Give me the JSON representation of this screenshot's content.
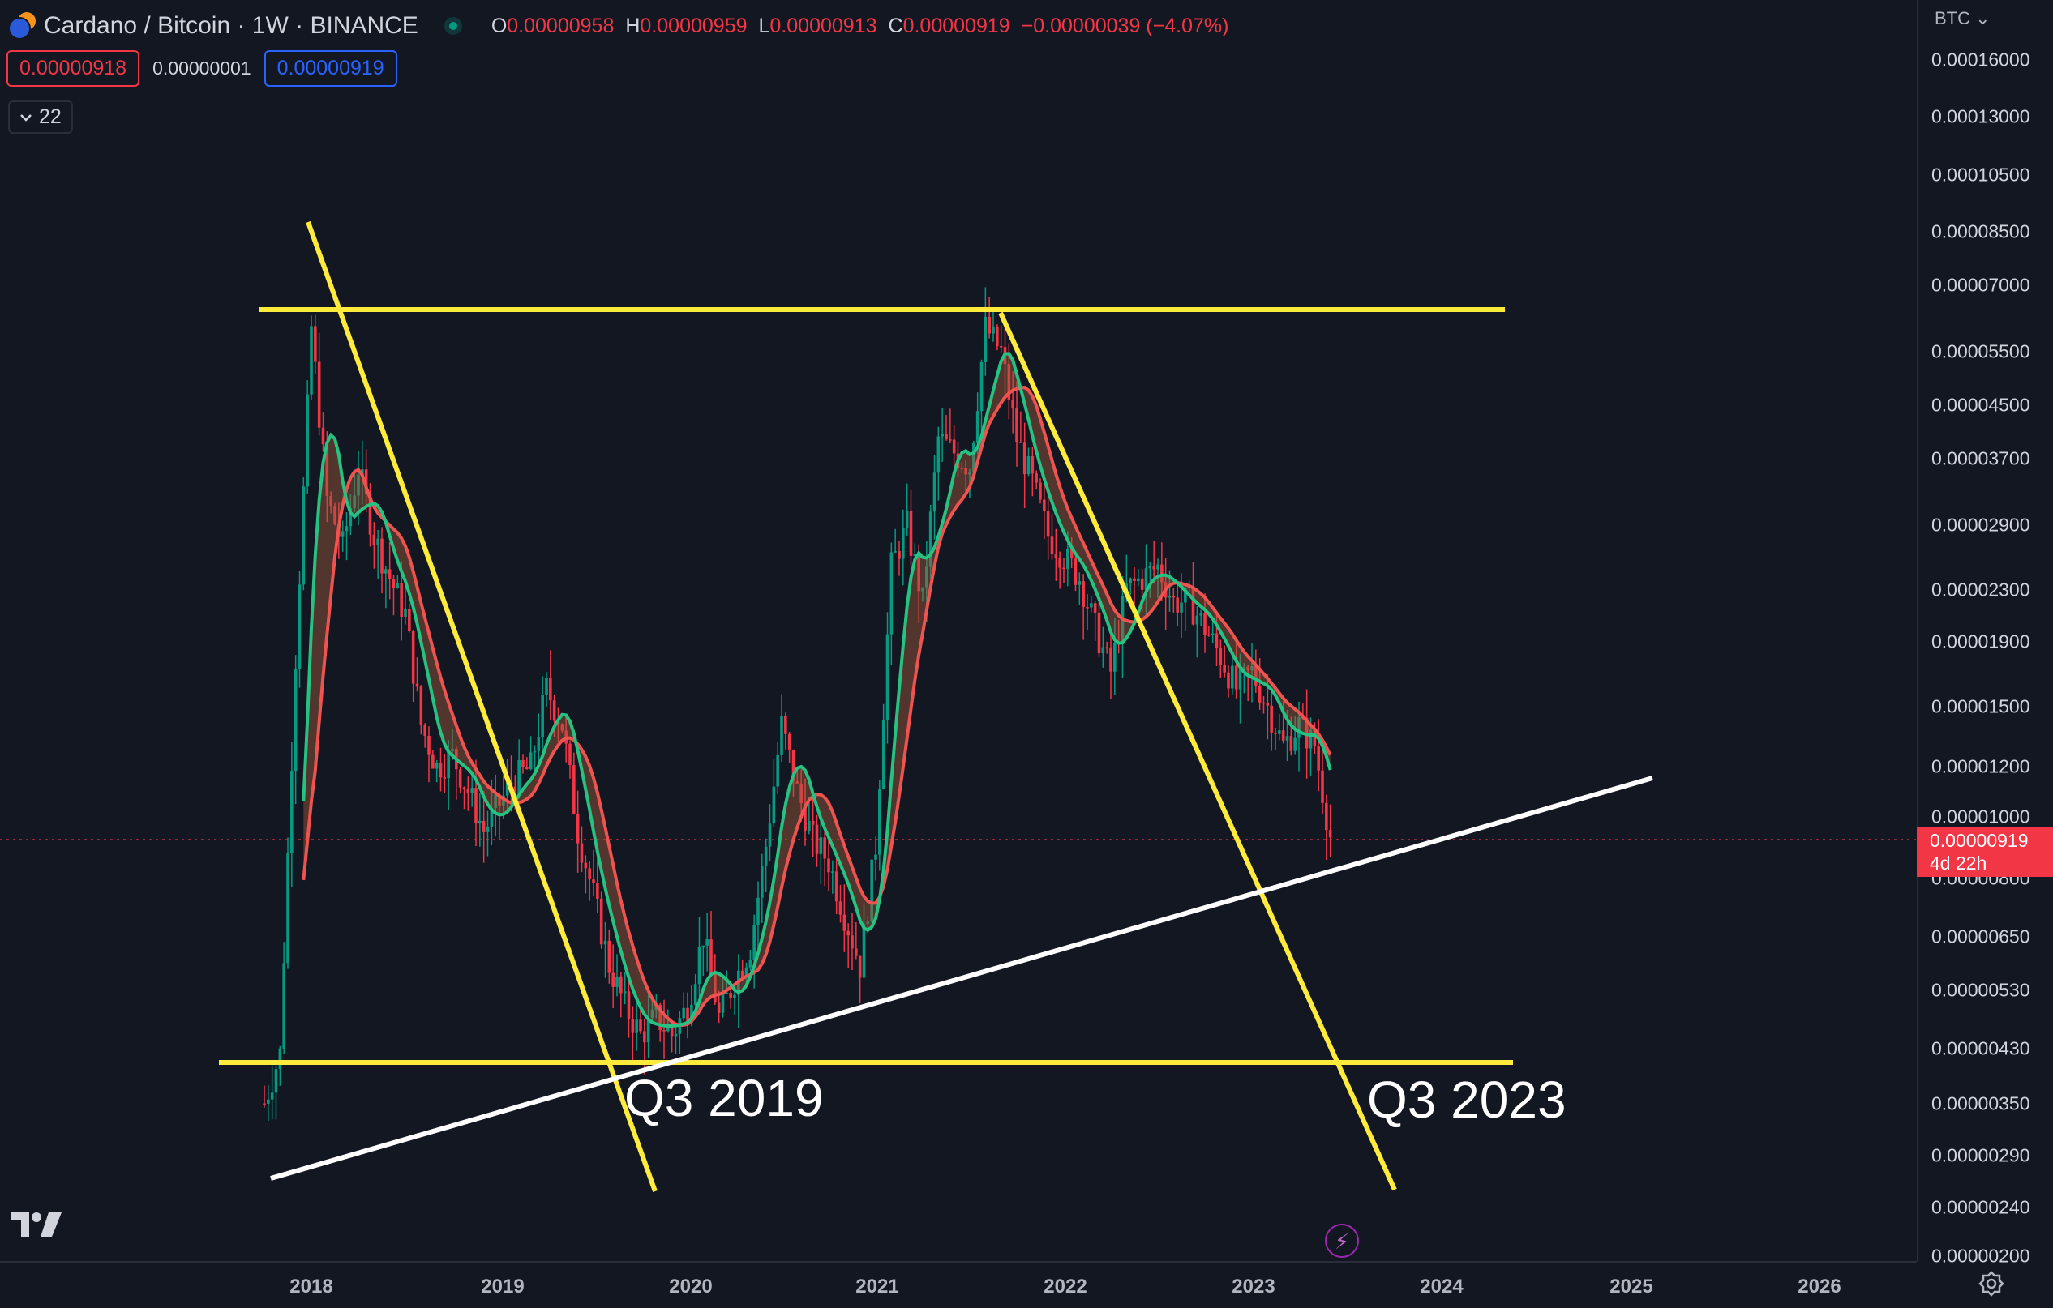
{
  "header": {
    "symbol": "Cardano / Bitcoin · 1W · BINANCE",
    "ohlc": {
      "o_label": "O",
      "o": "0.00000958",
      "h_label": "H",
      "h": "0.00000959",
      "l_label": "L",
      "l": "0.00000913",
      "c_label": "C",
      "c": "0.00000919",
      "change": "−0.00000039 (−4.07%)"
    }
  },
  "quote": {
    "bid": "0.00000918",
    "spread": "0.00000001",
    "ask": "0.00000919"
  },
  "indicators_toggle": "22",
  "price_axis": {
    "unit": "BTC",
    "ticks": [
      "0.00016000",
      "0.00013000",
      "0.00010500",
      "0.00008500",
      "0.00007000",
      "0.00005500",
      "0.00004500",
      "0.00003700",
      "0.00002900",
      "0.00002300",
      "0.00001900",
      "0.00001500",
      "0.00001200",
      "0.00001000",
      "0.00000800",
      "0.00000650",
      "0.00000530",
      "0.00000430",
      "0.00000350",
      "0.00000290",
      "0.00000240",
      "0.00000200"
    ],
    "current_price": "0.00000919",
    "countdown": "4d 22h"
  },
  "time_axis": {
    "labels": [
      "2018",
      "2019",
      "2020",
      "2021",
      "2022",
      "2023",
      "2024",
      "2025",
      "2026"
    ]
  },
  "annotations": {
    "left": "Q3 2019",
    "right": "Q3 2023"
  },
  "colors": {
    "background": "#131722",
    "up": "#089981",
    "down": "#f23645",
    "trendline_yellow": "#ffeb3b",
    "trendline_white": "#ffffff"
  },
  "icons": {
    "settings": "gear-icon",
    "logo": "tradingview-logo",
    "flash": "lightning-icon",
    "pair": "ada-btc-pair-icon"
  },
  "chart_data": {
    "type": "line",
    "scale": "log",
    "x_range": [
      "2017-10",
      "2026"
    ],
    "ylim": [
      2e-06,
      0.00016
    ],
    "series": [
      {
        "x": [
          "2017-10",
          "2017-11",
          "2017-12",
          "2018-01",
          "2018-02",
          "2018-03",
          "2018-04",
          "2018-05",
          "2018-06",
          "2018-07",
          "2018-08",
          "2018-09",
          "2018-10",
          "2018-11",
          "2018-12",
          "2019-01",
          "2019-02",
          "2019-03",
          "2019-04",
          "2019-05",
          "2019-06",
          "2019-07",
          "2019-08",
          "2019-09",
          "2019-10",
          "2019-11",
          "2019-12",
          "2020-01",
          "2020-02",
          "2020-03",
          "2020-04",
          "2020-05",
          "2020-06",
          "2020-07",
          "2020-08",
          "2020-09",
          "2020-10",
          "2020-11",
          "2020-12",
          "2021-01",
          "2021-02",
          "2021-03",
          "2021-04",
          "2021-05",
          "2021-06",
          "2021-07",
          "2021-08",
          "2021-09",
          "2021-10",
          "2021-11",
          "2021-12",
          "2022-01",
          "2022-02",
          "2022-03",
          "2022-04",
          "2022-05",
          "2022-06",
          "2022-07",
          "2022-08",
          "2022-09",
          "2022-10",
          "2022-11",
          "2022-12",
          "2023-01",
          "2023-02",
          "2023-03",
          "2023-04",
          "2023-05",
          "2023-06"
        ],
        "values": [
          3.5e-06,
          4.2e-06,
          1.8e-05,
          6e-05,
          3.2e-05,
          2.7e-05,
          3.6e-05,
          2.8e-05,
          2.4e-05,
          2.1e-05,
          1.4e-05,
          1.2e-05,
          1.25e-05,
          1.1e-05,
          9.5e-06,
          1.05e-05,
          1.15e-05,
          1.2e-05,
          1.6e-05,
          1.4e-05,
          9.5e-06,
          7.5e-06,
          5.8e-06,
          5e-06,
          4.5e-06,
          4.8e-06,
          4.5e-06,
          5e-06,
          6.5e-06,
          4.8e-06,
          5.5e-06,
          6.2e-06,
          9e-06,
          1.4e-05,
          1.1e-05,
          9.2e-06,
          8.5e-06,
          7e-06,
          5.8e-06,
          9e-06,
          2.5e-05,
          2.9e-05,
          2.2e-05,
          4e-05,
          3.8e-05,
          3.6e-05,
          6e-05,
          5.5e-05,
          4e-05,
          3.4e-05,
          2.8e-05,
          2.6e-05,
          2.4e-05,
          2e-05,
          1.7e-05,
          2.3e-05,
          2.4e-05,
          2.5e-05,
          2.2e-05,
          2.2e-05,
          2e-05,
          1.8e-05,
          1.6e-05,
          1.7e-05,
          1.5e-05,
          1.3e-05,
          1.4e-05,
          1.3e-05,
          9.3e-06
        ]
      }
    ]
  }
}
